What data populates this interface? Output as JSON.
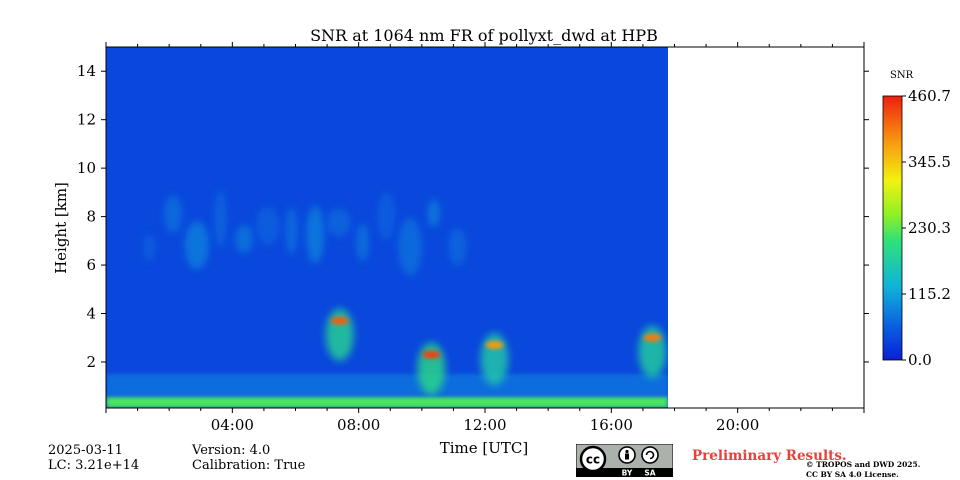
{
  "chart_data": {
    "type": "heatmap",
    "title": "SNR at 1064 nm FR of pollyxt_dwd at HPB",
    "xlabel": "Time [UTC]",
    "ylabel": "Height [km]",
    "x_unit": "hours UTC",
    "xlim": [
      0,
      24
    ],
    "ylim": [
      0.1,
      15
    ],
    "x_ticks": [
      "04:00",
      "08:00",
      "12:00",
      "16:00",
      "20:00"
    ],
    "y_ticks": [
      "2",
      "4",
      "6",
      "8",
      "10",
      "12",
      "14"
    ],
    "data_end_time": "17:50",
    "colormap": "jet",
    "colorbar": {
      "label": "SNR",
      "min": 0.0,
      "max": 460.7,
      "ticks": [
        "0.0",
        "115.2",
        "230.3",
        "345.5",
        "460.7"
      ]
    },
    "features": [
      {
        "kind": "surface_layer",
        "t0": 0,
        "t1": 17.8,
        "h0": 0.1,
        "h1": 0.6,
        "snr": 220
      },
      {
        "kind": "boundary_layer",
        "t0": 0,
        "t1": 17.8,
        "h0": 0.6,
        "h1": 1.5,
        "snr": 70
      },
      {
        "kind": "cloud",
        "t": 7.4,
        "h": 3.7,
        "snr": 420
      },
      {
        "kind": "cloud",
        "t": 10.3,
        "h": 2.3,
        "snr": 440
      },
      {
        "kind": "cloud",
        "t": 12.3,
        "h": 2.7,
        "snr": 380
      },
      {
        "kind": "cloud",
        "t": 17.3,
        "h": 3.0,
        "snr": 400
      },
      {
        "kind": "cirrus",
        "t0": 1,
        "t1": 11.5,
        "h0": 5.5,
        "h1": 9.0,
        "snr": 90
      }
    ]
  },
  "footer": {
    "date": "2025-03-11",
    "lc": "LC: 3.21e+14",
    "version": "Version: 4.0",
    "calibration": "Calibration: True",
    "preliminary": "Preliminary Results.",
    "copyright_line1": "© TROPOS and DWD 2025.",
    "copyright_line2": "CC BY SA 4.0 License.",
    "badge_cc": "cc",
    "badge_by": "BY",
    "badge_sa": "SA"
  }
}
